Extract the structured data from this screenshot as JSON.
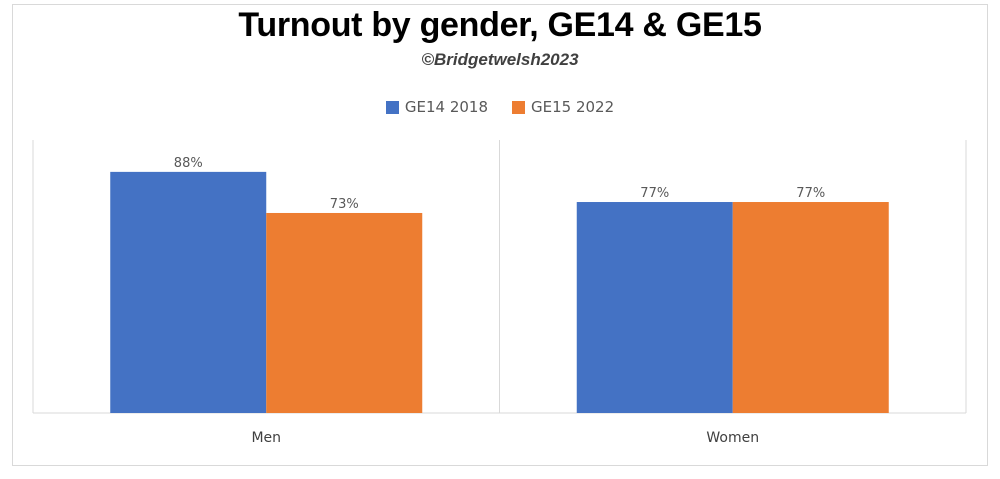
{
  "chart_data": {
    "type": "bar",
    "title": "Turnout by gender, GE14 & GE15",
    "subtitle": "©Bridgetwelsh2023",
    "categories": [
      "Men",
      "Women"
    ],
    "series": [
      {
        "name": "GE14 2018",
        "values": [
          88,
          77
        ],
        "color": "#4472c4"
      },
      {
        "name": "GE15 2022",
        "values": [
          73,
          77
        ],
        "color": "#ed7d31"
      }
    ],
    "data_labels": [
      [
        "88%",
        "77%"
      ],
      [
        "73%",
        "77%"
      ]
    ],
    "ylim": [
      0,
      100
    ],
    "grid": false,
    "legend_position": "top"
  }
}
